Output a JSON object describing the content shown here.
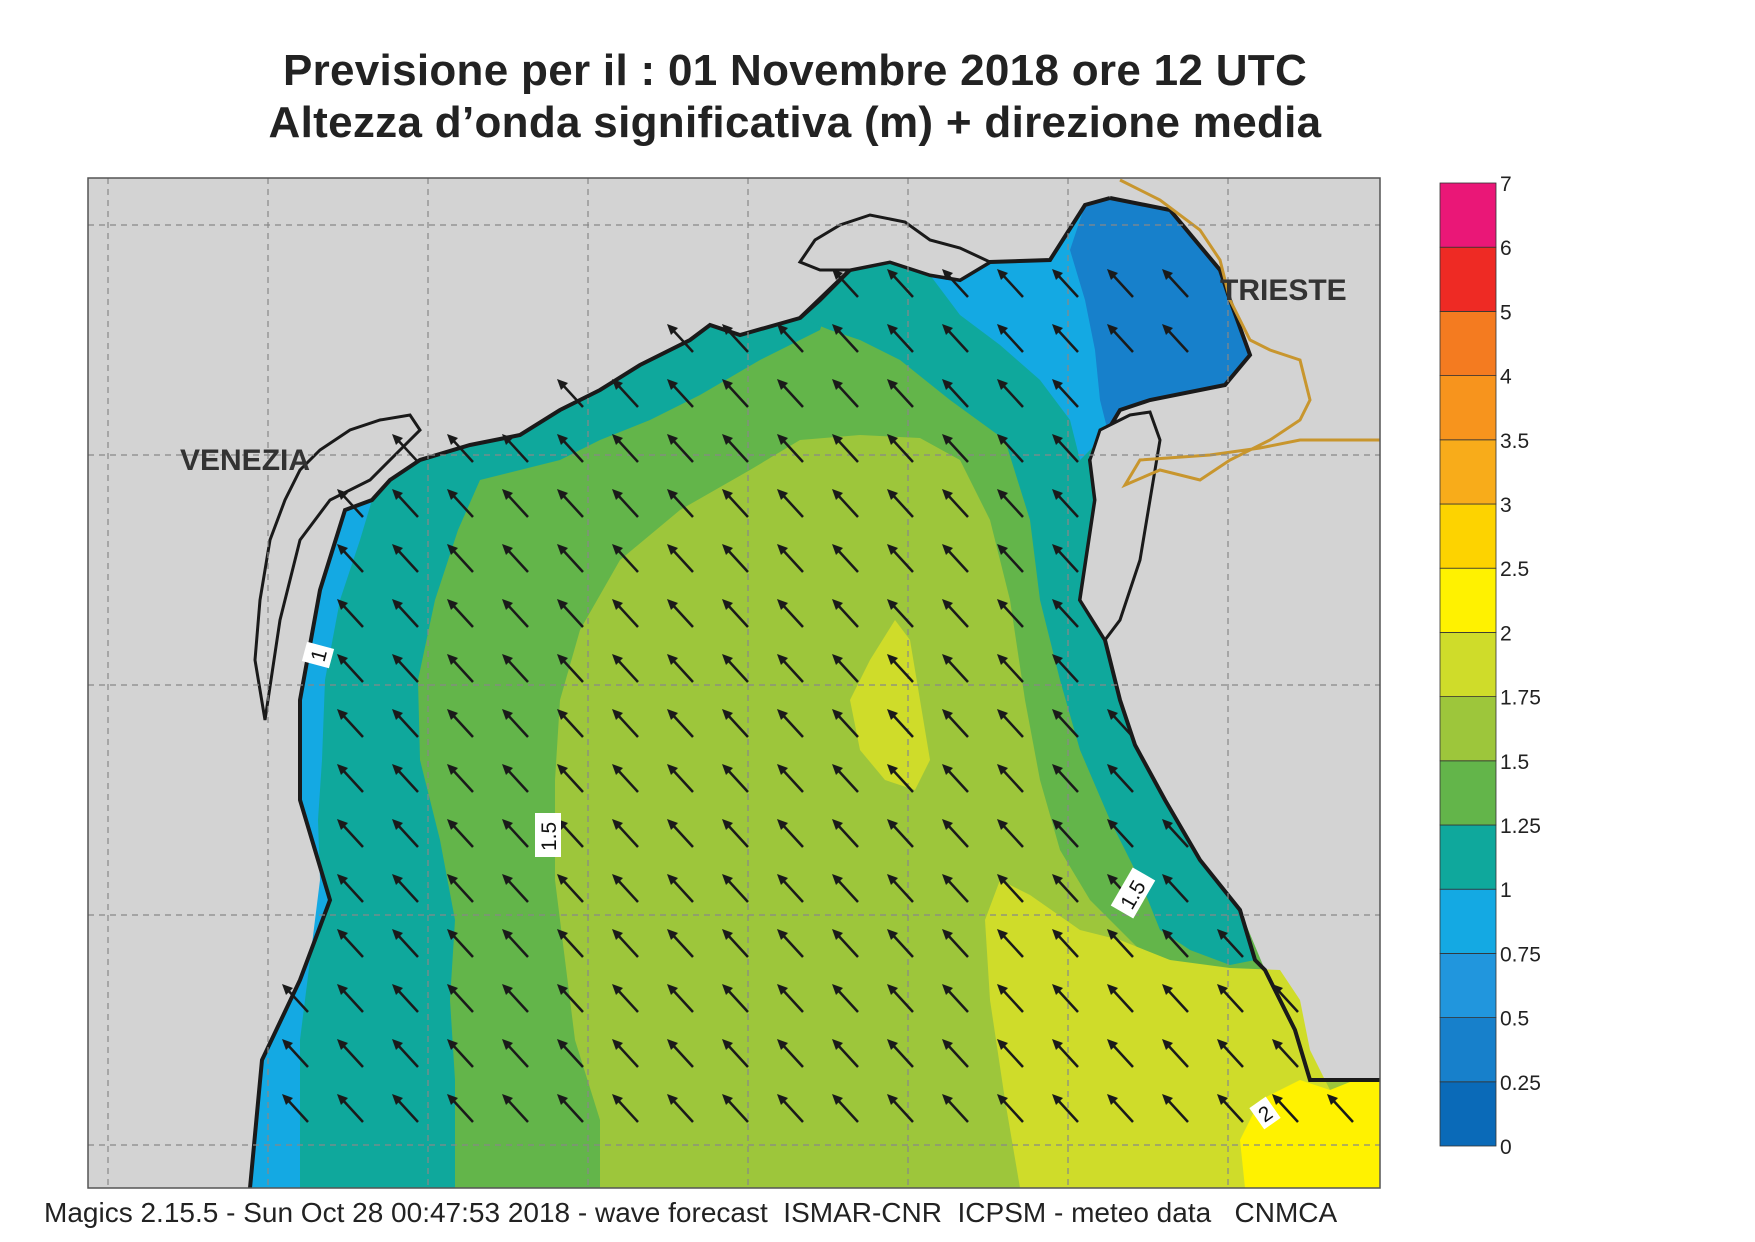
{
  "title": {
    "line1": "Previsione per il  :  01 Novembre  2018   ore 12 UTC",
    "line2": "Altezza d’onda significativa (m) + direzione media"
  },
  "footer": "Magics 2.15.5 - Sun Oct 28 00:47:53 2018 - wave forecast  ISMAR-CNR  ICPSM - meteo data   CNMCA",
  "cities": {
    "venezia": "VENEZIA",
    "trieste": "TRIESTE"
  },
  "contour_labels": [
    "1",
    "1.5",
    "1.5",
    "2"
  ],
  "legend": {
    "levels": [
      "0",
      "0.25",
      "0.5",
      "0.75",
      "1",
      "1.25",
      "1.5",
      "1.75",
      "2",
      "2.5",
      "3",
      "3.5",
      "4",
      "5",
      "6",
      "7"
    ],
    "colors": [
      "#0a6ab8",
      "#1780cb",
      "#2196dd",
      "#14a9e3",
      "#0fa89c",
      "#63b54a",
      "#9dc63b",
      "#cfdc2a",
      "#fff200",
      "#fdd300",
      "#f8ac1a",
      "#f7941d",
      "#f47b20",
      "#ee2a24",
      "#ea1777"
    ]
  },
  "colors": {
    "land": "#d3d3d3",
    "coast": "#1a1a1a",
    "border": "#c8962e",
    "arrow": "#1a1a1a"
  },
  "wave_direction": "NW"
}
